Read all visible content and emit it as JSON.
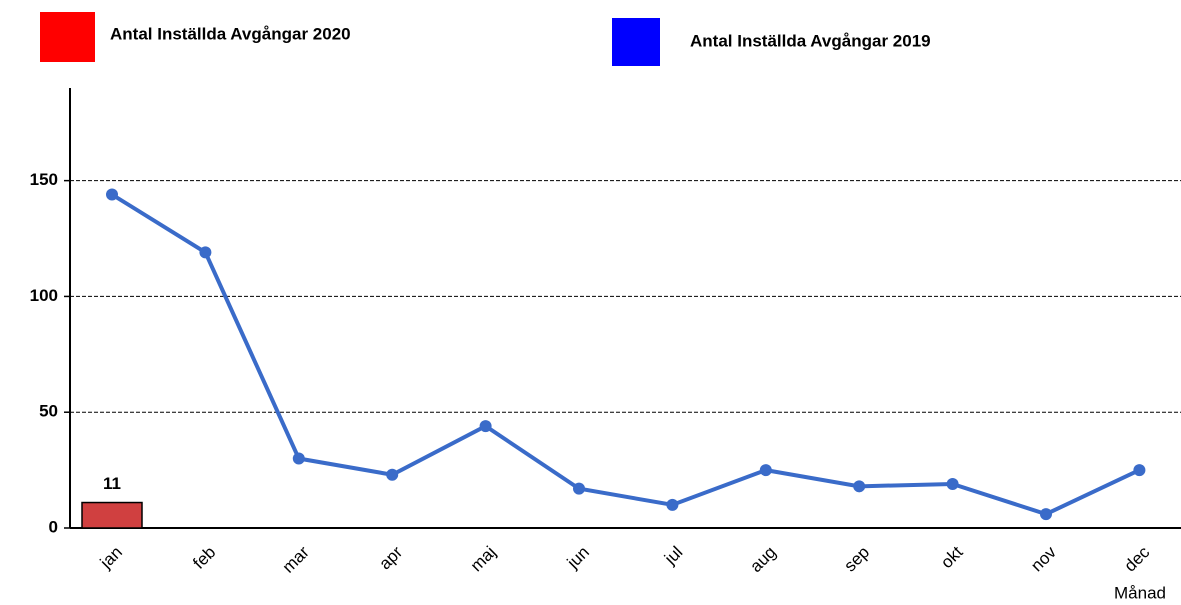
{
  "chart_data": {
    "type": "bar_line",
    "x_label": "Månad",
    "categories": [
      "jan",
      "feb",
      "mar",
      "apr",
      "maj",
      "jun",
      "jul",
      "aug",
      "sep",
      "okt",
      "nov",
      "dec"
    ],
    "series": [
      {
        "name": "Antal Inställda Avgångar 2020",
        "type": "bar",
        "color": "#d04040",
        "legend_color": "#ff0000",
        "values": [
          11,
          null,
          null,
          null,
          null,
          null,
          null,
          null,
          null,
          null,
          null,
          null
        ]
      },
      {
        "name": "Antal Inställda Avgångar 2019",
        "type": "line",
        "color": "#3a6bc9",
        "legend_color": "#0000ff",
        "values": [
          144,
          119,
          30,
          23,
          44,
          17,
          10,
          25,
          18,
          19,
          6,
          25
        ]
      }
    ],
    "ylim": [
      0,
      190
    ],
    "yticks": [
      0,
      50,
      100,
      150
    ],
    "grid": true
  }
}
